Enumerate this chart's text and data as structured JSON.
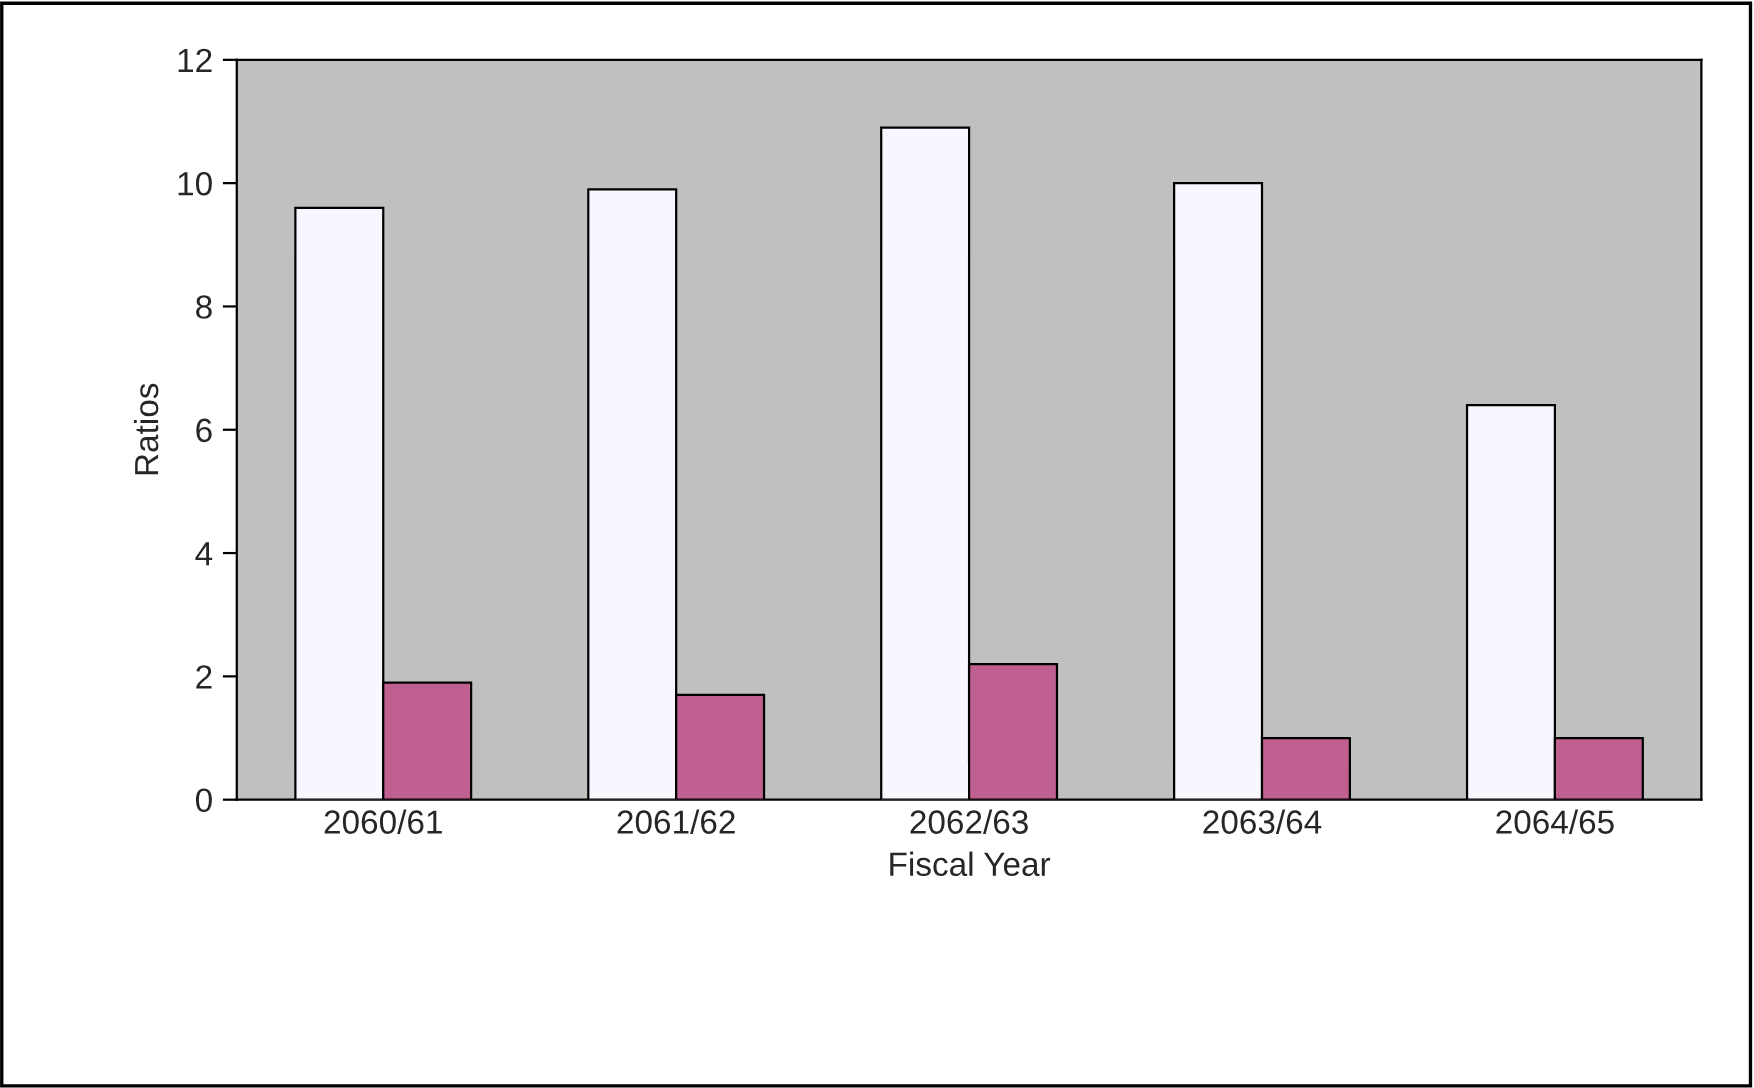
{
  "chart_data": {
    "type": "bar",
    "xlabel": "Fiscal Year",
    "ylabel": "Ratios",
    "categories": [
      "2060/61",
      "2061/62",
      "2062/63",
      "2063/64",
      "2064/65"
    ],
    "series": [
      {
        "color": "#f8f6ff",
        "values": [
          9.6,
          9.9,
          10.9,
          10.0,
          6.4
        ]
      },
      {
        "color": "#c06090",
        "values": [
          1.9,
          1.7,
          2.2,
          1.0,
          1.0
        ]
      }
    ],
    "ylim": [
      0,
      12
    ],
    "yticks": [
      0,
      2,
      4,
      6,
      8,
      10,
      12
    ],
    "grid": false
  }
}
